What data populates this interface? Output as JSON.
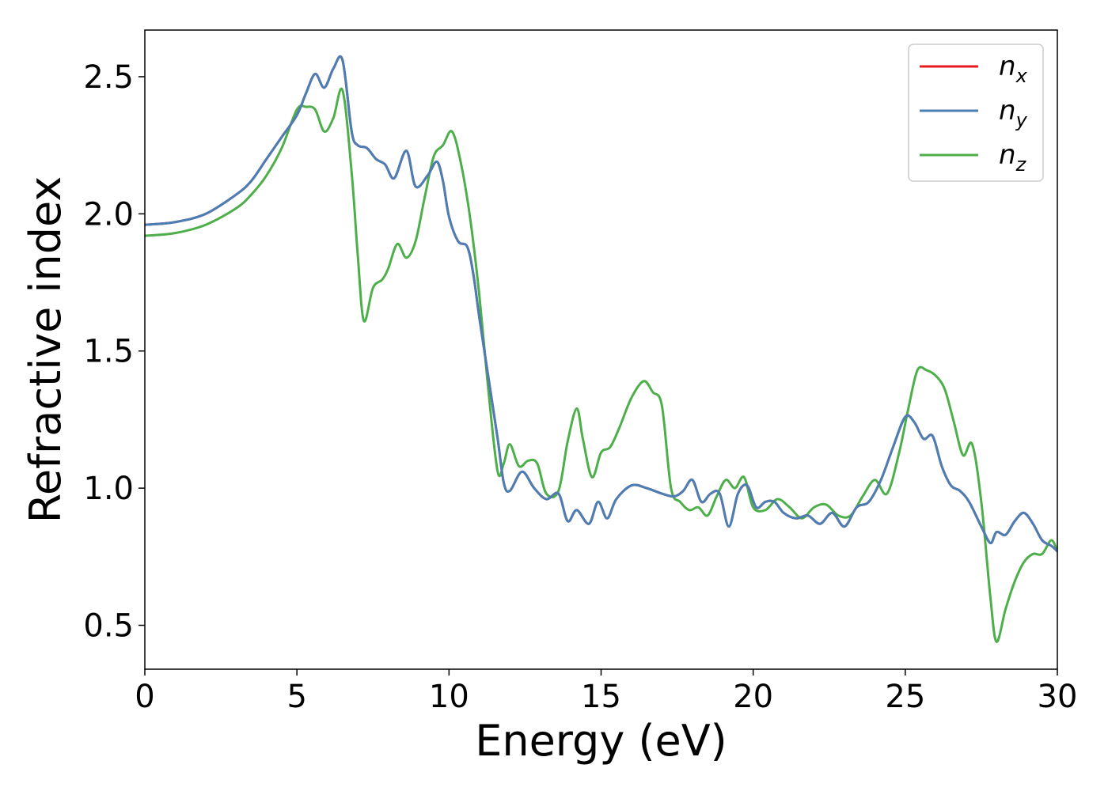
{
  "chart_data": {
    "type": "line",
    "title": "",
    "xlabel": "Energy (eV)",
    "ylabel": "Refractive index",
    "xlim": [
      0,
      30
    ],
    "ylim": [
      0.34,
      2.67
    ],
    "xticks": [
      0,
      5,
      10,
      15,
      20,
      25,
      30
    ],
    "yticks": [
      0.5,
      1.0,
      1.5,
      2.0,
      2.5
    ],
    "xtick_labels": [
      "0",
      "5",
      "10",
      "15",
      "20",
      "25",
      "30"
    ],
    "ytick_labels": [
      "0.5",
      "1.0",
      "1.5",
      "2.0",
      "2.5"
    ],
    "grid": false,
    "legend_position": "top-right",
    "series": [
      {
        "name": "n_x",
        "label_main": "n",
        "label_sub": "x",
        "color": "#e41a1c",
        "x": [
          0,
          1,
          2,
          3,
          3.5,
          4,
          4.5,
          5,
          5.3,
          5.6,
          5.9,
          6.2,
          6.5,
          6.8,
          7.0,
          7.3,
          7.6,
          7.9,
          8.2,
          8.6,
          8.9,
          9.3,
          9.6,
          9.8,
          10.0,
          10.3,
          10.6,
          10.8,
          11.0,
          11.3,
          11.6,
          11.8,
          12.0,
          12.4,
          12.8,
          13.2,
          13.6,
          13.9,
          14.2,
          14.6,
          14.9,
          15.2,
          15.5,
          16.0,
          16.5,
          17.0,
          17.4,
          17.7,
          18.0,
          18.3,
          18.6,
          18.9,
          19.2,
          19.5,
          19.8,
          20.1,
          20.4,
          20.7,
          21.0,
          21.4,
          21.8,
          22.2,
          22.6,
          23.0,
          23.4,
          23.8,
          24.2,
          24.6,
          25.0,
          25.3,
          25.6,
          25.9,
          26.2,
          26.5,
          26.8,
          27.1,
          27.5,
          27.8,
          28.0,
          28.3,
          28.6,
          28.9,
          29.2,
          29.5,
          29.8,
          30.0
        ],
        "y": [
          1.96,
          1.97,
          2.0,
          2.07,
          2.12,
          2.2,
          2.28,
          2.36,
          2.44,
          2.51,
          2.46,
          2.53,
          2.56,
          2.3,
          2.25,
          2.24,
          2.2,
          2.18,
          2.13,
          2.23,
          2.1,
          2.14,
          2.19,
          2.12,
          1.99,
          1.9,
          1.88,
          1.78,
          1.62,
          1.4,
          1.18,
          1.02,
          0.99,
          1.06,
          1.0,
          0.96,
          0.98,
          0.88,
          0.92,
          0.87,
          0.95,
          0.89,
          0.96,
          1.01,
          1.0,
          0.98,
          0.97,
          0.99,
          1.03,
          0.95,
          0.98,
          0.98,
          0.86,
          0.98,
          1.01,
          0.93,
          0.95,
          0.95,
          0.91,
          0.89,
          0.9,
          0.87,
          0.91,
          0.86,
          0.93,
          0.95,
          1.03,
          1.15,
          1.26,
          1.24,
          1.18,
          1.19,
          1.08,
          1.01,
          0.99,
          0.95,
          0.86,
          0.8,
          0.84,
          0.83,
          0.88,
          0.91,
          0.87,
          0.81,
          0.79,
          0.77
        ]
      },
      {
        "name": "n_y",
        "label_main": "n",
        "label_sub": "y",
        "color": "#4a7fb5",
        "x": [
          0,
          1,
          2,
          3,
          3.5,
          4,
          4.5,
          5,
          5.3,
          5.6,
          5.9,
          6.2,
          6.5,
          6.8,
          7.0,
          7.3,
          7.6,
          7.9,
          8.2,
          8.6,
          8.9,
          9.3,
          9.6,
          9.8,
          10.0,
          10.3,
          10.6,
          10.8,
          11.0,
          11.3,
          11.6,
          11.8,
          12.0,
          12.4,
          12.8,
          13.2,
          13.6,
          13.9,
          14.2,
          14.6,
          14.9,
          15.2,
          15.5,
          16.0,
          16.5,
          17.0,
          17.4,
          17.7,
          18.0,
          18.3,
          18.6,
          18.9,
          19.2,
          19.5,
          19.8,
          20.1,
          20.4,
          20.7,
          21.0,
          21.4,
          21.8,
          22.2,
          22.6,
          23.0,
          23.4,
          23.8,
          24.2,
          24.6,
          25.0,
          25.3,
          25.6,
          25.9,
          26.2,
          26.5,
          26.8,
          27.1,
          27.5,
          27.8,
          28.0,
          28.3,
          28.6,
          28.9,
          29.2,
          29.5,
          29.8,
          30.0
        ],
        "y": [
          1.96,
          1.97,
          2.0,
          2.07,
          2.12,
          2.2,
          2.28,
          2.36,
          2.44,
          2.51,
          2.46,
          2.53,
          2.56,
          2.3,
          2.25,
          2.24,
          2.2,
          2.18,
          2.13,
          2.23,
          2.1,
          2.14,
          2.19,
          2.12,
          1.99,
          1.9,
          1.88,
          1.78,
          1.62,
          1.4,
          1.18,
          1.02,
          0.99,
          1.06,
          1.0,
          0.96,
          0.98,
          0.88,
          0.92,
          0.87,
          0.95,
          0.89,
          0.96,
          1.01,
          1.0,
          0.98,
          0.97,
          0.99,
          1.03,
          0.95,
          0.98,
          0.98,
          0.86,
          0.98,
          1.01,
          0.93,
          0.95,
          0.95,
          0.91,
          0.89,
          0.9,
          0.87,
          0.91,
          0.86,
          0.93,
          0.95,
          1.03,
          1.15,
          1.26,
          1.24,
          1.18,
          1.19,
          1.08,
          1.01,
          0.99,
          0.95,
          0.86,
          0.8,
          0.84,
          0.83,
          0.88,
          0.91,
          0.87,
          0.81,
          0.79,
          0.77
        ]
      },
      {
        "name": "n_z",
        "label_main": "n",
        "label_sub": "z",
        "color": "#4daf4a",
        "x": [
          0,
          1,
          2,
          3,
          3.5,
          4,
          4.5,
          5,
          5.3,
          5.6,
          5.9,
          6.2,
          6.5,
          6.8,
          7.0,
          7.2,
          7.5,
          7.8,
          8.0,
          8.3,
          8.6,
          8.9,
          9.2,
          9.5,
          9.8,
          10.1,
          10.4,
          10.7,
          11.0,
          11.3,
          11.6,
          11.8,
          12.0,
          12.3,
          12.6,
          12.9,
          13.2,
          13.6,
          13.9,
          14.2,
          14.4,
          14.7,
          15.0,
          15.3,
          15.6,
          16.0,
          16.4,
          16.7,
          17.0,
          17.3,
          17.6,
          17.9,
          18.2,
          18.5,
          18.8,
          19.1,
          19.4,
          19.7,
          20.0,
          20.4,
          20.8,
          21.2,
          21.6,
          22.0,
          22.4,
          22.8,
          23.2,
          23.6,
          24.0,
          24.4,
          24.8,
          25.1,
          25.4,
          25.7,
          26.0,
          26.3,
          26.6,
          26.9,
          27.2,
          27.5,
          27.8,
          28.0,
          28.3,
          28.6,
          28.9,
          29.2,
          29.5,
          29.8,
          30.0
        ],
        "y": [
          1.92,
          1.93,
          1.96,
          2.02,
          2.07,
          2.14,
          2.24,
          2.38,
          2.39,
          2.38,
          2.3,
          2.35,
          2.45,
          2.15,
          1.85,
          1.61,
          1.73,
          1.76,
          1.8,
          1.89,
          1.84,
          1.9,
          2.06,
          2.21,
          2.25,
          2.3,
          2.18,
          1.98,
          1.7,
          1.35,
          1.06,
          1.09,
          1.16,
          1.08,
          1.1,
          1.09,
          0.98,
          0.99,
          1.17,
          1.29,
          1.18,
          1.04,
          1.13,
          1.15,
          1.22,
          1.33,
          1.39,
          1.35,
          1.3,
          1.0,
          0.95,
          0.92,
          0.93,
          0.9,
          0.97,
          1.03,
          1.0,
          1.04,
          0.93,
          0.92,
          0.96,
          0.93,
          0.89,
          0.93,
          0.94,
          0.9,
          0.9,
          0.97,
          1.03,
          0.98,
          1.13,
          1.29,
          1.43,
          1.43,
          1.41,
          1.36,
          1.24,
          1.12,
          1.16,
          0.95,
          0.6,
          0.44,
          0.56,
          0.66,
          0.73,
          0.76,
          0.76,
          0.81,
          0.77
        ]
      }
    ]
  }
}
